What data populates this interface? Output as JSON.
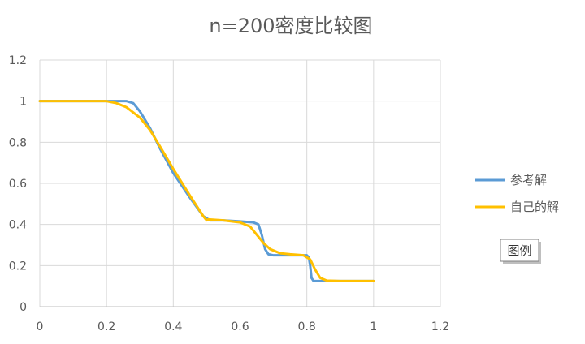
{
  "chart_data": {
    "type": "line",
    "title": "n=200密度比较图",
    "xlabel": "",
    "ylabel": "",
    "xlim": [
      0,
      1.2
    ],
    "ylim": [
      0,
      1.2
    ],
    "x_ticks": [
      "0",
      "0.2",
      "0.4",
      "0.6",
      "0.8",
      "1",
      "1.2"
    ],
    "y_ticks": [
      "0",
      "0.2",
      "0.4",
      "0.6",
      "0.8",
      "1",
      "1.2"
    ],
    "grid": true,
    "legend_position": "right",
    "series": [
      {
        "name": "参考解",
        "color": "#5B9BD5",
        "points": [
          [
            0,
            1
          ],
          [
            0.2,
            1
          ],
          [
            0.26,
            1
          ],
          [
            0.28,
            0.99
          ],
          [
            0.3,
            0.95
          ],
          [
            0.33,
            0.87
          ],
          [
            0.36,
            0.77
          ],
          [
            0.4,
            0.65
          ],
          [
            0.45,
            0.53
          ],
          [
            0.49,
            0.44
          ],
          [
            0.51,
            0.42
          ],
          [
            0.55,
            0.42
          ],
          [
            0.6,
            0.415
          ],
          [
            0.64,
            0.41
          ],
          [
            0.655,
            0.4
          ],
          [
            0.665,
            0.35
          ],
          [
            0.675,
            0.28
          ],
          [
            0.685,
            0.255
          ],
          [
            0.7,
            0.25
          ],
          [
            0.75,
            0.25
          ],
          [
            0.8,
            0.25
          ],
          [
            0.806,
            0.24
          ],
          [
            0.81,
            0.2
          ],
          [
            0.814,
            0.14
          ],
          [
            0.82,
            0.125
          ],
          [
            0.85,
            0.125
          ],
          [
            0.9,
            0.125
          ],
          [
            1,
            0.125
          ]
        ]
      },
      {
        "name": "自己的解",
        "color": "#FFC000",
        "points": [
          [
            0,
            1
          ],
          [
            0.2,
            1
          ],
          [
            0.23,
            0.99
          ],
          [
            0.26,
            0.97
          ],
          [
            0.3,
            0.92
          ],
          [
            0.33,
            0.86
          ],
          [
            0.36,
            0.78
          ],
          [
            0.4,
            0.67
          ],
          [
            0.45,
            0.54
          ],
          [
            0.49,
            0.44
          ],
          [
            0.5,
            0.42
          ],
          [
            0.505,
            0.425
          ],
          [
            0.55,
            0.42
          ],
          [
            0.6,
            0.41
          ],
          [
            0.63,
            0.39
          ],
          [
            0.65,
            0.35
          ],
          [
            0.67,
            0.31
          ],
          [
            0.69,
            0.28
          ],
          [
            0.72,
            0.26
          ],
          [
            0.75,
            0.255
          ],
          [
            0.79,
            0.25
          ],
          [
            0.81,
            0.23
          ],
          [
            0.825,
            0.18
          ],
          [
            0.84,
            0.14
          ],
          [
            0.86,
            0.127
          ],
          [
            0.9,
            0.125
          ],
          [
            1,
            0.125
          ]
        ]
      }
    ],
    "annotation": "图例"
  }
}
